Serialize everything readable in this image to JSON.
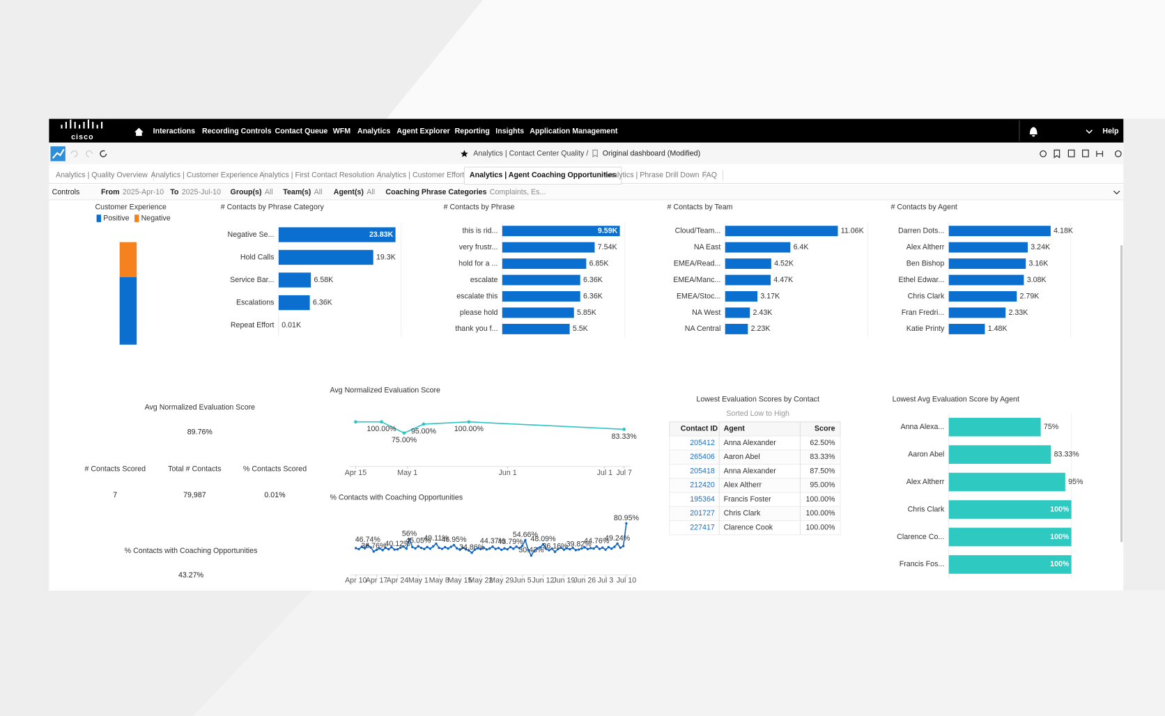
{
  "nav": {
    "logo": "cisco",
    "items": [
      "Interactions",
      "Recording Controls",
      "Contact Queue",
      "WFM",
      "Analytics",
      "Agent Explorer",
      "Reporting",
      "Insights",
      "Application Management"
    ],
    "help": "Help"
  },
  "toolbar": {
    "breadcrumb": "Analytics | Contact Center Quality /",
    "dashboard": "Original dashboard (Modified)"
  },
  "tabs": {
    "items": [
      "Analytics | Quality Overview",
      "Analytics | Customer Experience",
      "Analytics | First Contact Resolution",
      "Analytics | Customer Effort",
      "Analytics | Agent Coaching Opportunities",
      "Analytics | Phrase Drill Down",
      "FAQ"
    ],
    "active": 4
  },
  "controls": {
    "label": "Controls",
    "filters": [
      {
        "name": "From",
        "value": "2025-Apr-10"
      },
      {
        "name": "To",
        "value": "2025-Jul-10"
      },
      {
        "name": "Group(s)",
        "value": "All"
      },
      {
        "name": "Team(s)",
        "value": "All"
      },
      {
        "name": "Agent(s)",
        "value": "All"
      },
      {
        "name": "Coaching Phrase Categories",
        "value": "Complaints, Es..."
      }
    ]
  },
  "kpis": [
    {
      "title": "Avg Normalized Evaluation Score",
      "value": "89.76%"
    },
    {
      "title": "# Contacts Scored",
      "value": "7"
    },
    {
      "title": "Total # Contacts",
      "value": "79,987"
    },
    {
      "title": "% Contacts Scored",
      "value": "0.01%"
    },
    {
      "title": "% Contacts with Coaching Opportunities",
      "value": "43.27%"
    }
  ],
  "table": {
    "title": "Lowest Evaluation Scores by Contact",
    "subtitle": "Sorted Low to High",
    "columns": [
      "Contact ID",
      "Agent",
      "Score"
    ],
    "rows": [
      [
        "205412",
        "Anna Alexander",
        "62.50%"
      ],
      [
        "265406",
        "Aaron Abel",
        "83.33%"
      ],
      [
        "205418",
        "Anna Alexander",
        "87.50%"
      ],
      [
        "212420",
        "Alex Altherr",
        "95.00%"
      ],
      [
        "195364",
        "Francis Foster",
        "100.00%"
      ],
      [
        "201727",
        "Chris Clark",
        "100.00%"
      ],
      [
        "227417",
        "Clarence Cook",
        "100.00%"
      ]
    ]
  },
  "chart_data": [
    {
      "type": "bar",
      "orientation": "vertical",
      "stacked": true,
      "title": "Customer Experience",
      "series": [
        {
          "name": "Positive",
          "color": "#0b6fd0",
          "values": [
            66
          ]
        },
        {
          "name": "Negative",
          "color": "#f5821f",
          "values": [
            34
          ]
        }
      ],
      "ylim": [
        0,
        100
      ]
    },
    {
      "type": "bar",
      "orientation": "horizontal",
      "title": "# Contacts by Phrase Category",
      "categories": [
        "Negative Se...",
        "Hold Calls",
        "Service Bar...",
        "Escalations",
        "Repeat Effort"
      ],
      "values": [
        23830,
        19300,
        6580,
        6360,
        10
      ],
      "value_labels": [
        "23.83K",
        "19.3K",
        "6.58K",
        "6.36K",
        "0.01K"
      ],
      "color": "#0b6fd0",
      "xlim": [
        0,
        25000
      ]
    },
    {
      "type": "bar",
      "orientation": "horizontal",
      "title": "# Contacts by Phrase",
      "categories": [
        "this is rid...",
        "very frustr...",
        "hold for a ...",
        "escalate",
        "escalate this",
        "please hold",
        "thank you f..."
      ],
      "values": [
        9590,
        7540,
        6850,
        6360,
        6360,
        5850,
        5500
      ],
      "value_labels": [
        "9.59K",
        "7.54K",
        "6.85K",
        "6.36K",
        "6.36K",
        "5.85K",
        "5.5K"
      ],
      "color": "#0b6fd0",
      "xlim": [
        0,
        10000
      ]
    },
    {
      "type": "bar",
      "orientation": "horizontal",
      "title": "# Contacts by Team",
      "categories": [
        "Cloud/Team...",
        "NA East",
        "EMEA/Read...",
        "EMEA/Manc...",
        "EMEA/Stoc...",
        "NA West",
        "NA Central"
      ],
      "values": [
        11060,
        6400,
        4520,
        4470,
        3170,
        2430,
        2230
      ],
      "value_labels": [
        "11.06K",
        "6.4K",
        "4.52K",
        "4.47K",
        "3.17K",
        "2.43K",
        "2.23K"
      ],
      "color": "#0b6fd0",
      "xlim": [
        0,
        14000
      ]
    },
    {
      "type": "bar",
      "orientation": "horizontal",
      "title": "# Contacts by Agent",
      "categories": [
        "Darren Dots...",
        "Alex Altherr",
        "Ben Bishop",
        "Ethel Edwar...",
        "Chris Clark",
        "Fran Fredri...",
        "Katie Printy"
      ],
      "values": [
        4180,
        3240,
        3160,
        3080,
        2790,
        2330,
        1480
      ],
      "value_labels": [
        "4.18K",
        "3.24K",
        "3.16K",
        "3.08K",
        "2.79K",
        "2.33K",
        "1.48K"
      ],
      "color": "#0b6fd0",
      "xlim": [
        0,
        5000
      ]
    },
    {
      "type": "line",
      "title": "Avg Normalized Evaluation Score",
      "x": [
        105,
        113,
        120,
        126,
        140,
        188
      ],
      "values": [
        100,
        100,
        75,
        95,
        100,
        83.33
      ],
      "value_labels": [
        null,
        "100.00%",
        "75.00%",
        "95.00%",
        "100.00%",
        "83.33%"
      ],
      "color": "#2ec4c4",
      "xlim": [
        103,
        190
      ],
      "ylim": [
        0,
        120
      ],
      "xticks": [
        {
          "value": 105,
          "label": "Apr 15"
        },
        {
          "value": 121,
          "label": "May 1"
        },
        {
          "value": 152,
          "label": "Jun 1"
        },
        {
          "value": 182,
          "label": "Jul 1"
        },
        {
          "value": 188,
          "label": "Jul 7"
        }
      ]
    },
    {
      "type": "line",
      "title": "% Contacts with Coaching Opportunities",
      "x": [
        100,
        101,
        102,
        103,
        104,
        105,
        106,
        107,
        108,
        109,
        110,
        111,
        112,
        113,
        114,
        115,
        116,
        117,
        118,
        119,
        120,
        121,
        122,
        123,
        124,
        125,
        126,
        127,
        128,
        129,
        130,
        131,
        132,
        133,
        134,
        135,
        136,
        137,
        138,
        139,
        140,
        141,
        142,
        143,
        144,
        145,
        146,
        147,
        148,
        149,
        150,
        151,
        152,
        153,
        154,
        155,
        156,
        157,
        158,
        159,
        160,
        161,
        162,
        163,
        164,
        165,
        166,
        167,
        168,
        169,
        170,
        171,
        172,
        173,
        174,
        175,
        176,
        177,
        178,
        179,
        180,
        181,
        182,
        183,
        184,
        185,
        186,
        187,
        188,
        189,
        190,
        191
      ],
      "values": [
        42.1,
        40.5,
        44.3,
        41.8,
        46.74,
        43.2,
        36.76,
        39.5,
        41.7,
        38.9,
        42.6,
        40.3,
        43.5,
        39.8,
        40.12,
        42.9,
        44.6,
        41.3,
        56,
        43.8,
        41.6,
        45.05,
        42.4,
        40.7,
        43.9,
        41.2,
        44.8,
        49.11,
        42.5,
        40.9,
        43.6,
        41.4,
        44.2,
        46.95,
        41.8,
        39.6,
        42.7,
        40.1,
        38.4,
        34.86,
        39.7,
        41.9,
        40.6,
        42.8,
        39.9,
        41.5,
        44.37,
        40.8,
        42.3,
        39.4,
        41.7,
        40.2,
        43.79,
        41.1,
        44.5,
        42.0,
        45.8,
        54.66,
        39.3,
        30.43,
        37.8,
        41.6,
        43.4,
        48.09,
        40.9,
        38.7,
        41.2,
        36.16,
        40.5,
        42.8,
        39.6,
        41.9,
        40.3,
        42.5,
        38.9,
        39.82,
        41.7,
        43.3,
        40.6,
        42.1,
        41.4,
        44.76,
        40.8,
        42.9,
        39.7,
        43.6,
        41.2,
        44.1,
        49.24,
        42.7,
        45.3,
        80.95
      ],
      "value_labels": [
        null,
        null,
        null,
        null,
        "46.74%",
        null,
        "36.76%",
        null,
        null,
        null,
        null,
        null,
        null,
        null,
        "40.12%",
        null,
        null,
        null,
        "56%",
        null,
        null,
        "45.05%",
        null,
        null,
        null,
        null,
        null,
        "49.11%",
        null,
        null,
        null,
        null,
        null,
        "46.95%",
        null,
        null,
        null,
        null,
        null,
        "34.86%",
        null,
        null,
        null,
        null,
        null,
        null,
        "44.37%",
        null,
        null,
        null,
        null,
        null,
        "43.79%",
        null,
        null,
        null,
        null,
        "54.66%",
        null,
        "30.43%",
        null,
        null,
        null,
        "48.09%",
        null,
        null,
        null,
        "36.16%",
        null,
        null,
        null,
        null,
        null,
        null,
        null,
        "39.82%",
        null,
        null,
        null,
        null,
        null,
        "44.76%",
        null,
        null,
        null,
        null,
        null,
        null,
        "49.24%",
        null,
        null,
        "80.95%"
      ],
      "color": "#1565c0",
      "xlim": [
        98,
        193
      ],
      "ylim": [
        0,
        90
      ],
      "xticks": [
        {
          "value": 100,
          "label": "Apr 10"
        },
        {
          "value": 107,
          "label": "Apr 17"
        },
        {
          "value": 114,
          "label": "Apr 24"
        },
        {
          "value": 121,
          "label": "May 1"
        },
        {
          "value": 128,
          "label": "May 8"
        },
        {
          "value": 135,
          "label": "May 15"
        },
        {
          "value": 142,
          "label": "May 22"
        },
        {
          "value": 149,
          "label": "May 29"
        },
        {
          "value": 156,
          "label": "Jun 5"
        },
        {
          "value": 163,
          "label": "Jun 12"
        },
        {
          "value": 170,
          "label": "Jun 19"
        },
        {
          "value": 177,
          "label": "Jun 26"
        },
        {
          "value": 184,
          "label": "Jul 3"
        },
        {
          "value": 191,
          "label": "Jul 10"
        }
      ]
    },
    {
      "type": "bar",
      "orientation": "horizontal",
      "title": "Lowest Avg Evaluation Score by Agent",
      "categories": [
        "Anna Alexa...",
        "Aaron Abel",
        "Alex Altherr",
        "Chris Clark",
        "Clarence Co...",
        "Francis Fos..."
      ],
      "values": [
        75,
        83.33,
        95,
        100,
        100,
        100
      ],
      "value_labels": [
        "75%",
        "83.33%",
        "95%",
        "100%",
        "100%",
        "100%"
      ],
      "color": "#2ec9c1",
      "xlim": [
        0,
        100
      ]
    }
  ]
}
